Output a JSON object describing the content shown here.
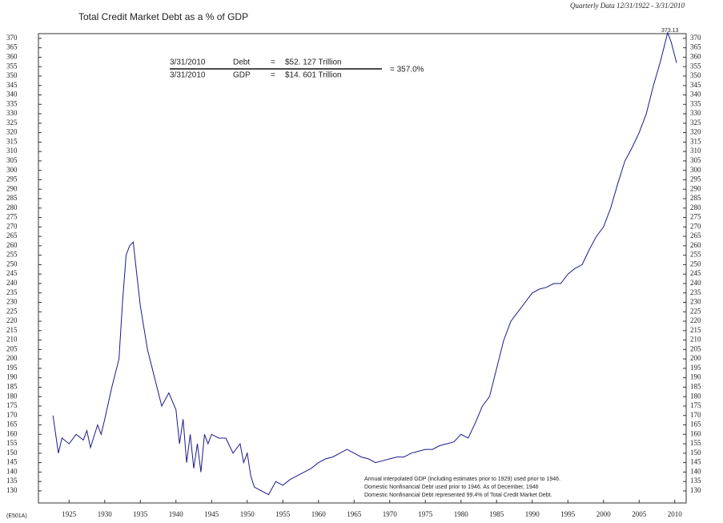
{
  "chart_data": {
    "type": "line",
    "title": "Total Credit Market Debt as a % of GDP",
    "subtitle": "Quarterly Data 12/31/1922 - 3/31/2010",
    "code": "(E501A)",
    "peak_label": "373.13",
    "formula": {
      "debt_date": "3/31/2010",
      "debt_name": "Debt",
      "debt_eq": "=",
      "debt_value": "$52. 127 Trillion",
      "gdp_date": "3/31/2010",
      "gdp_name": "GDP",
      "gdp_eq": "=",
      "gdp_value": "$14. 601 Trillion",
      "result": "= 357.0%"
    },
    "notes": [
      "Annual interpolated GDP (including estimates prior to 1929) used prior to 1946.",
      "Domestic Nonfinancial Debt used prior to 1946. As of December, 1946",
      "Domestic Nonfinancial Debt represented 99.4% of Total Credit Market Debt."
    ],
    "color": "#1a1a8c",
    "xlim": [
      1920.7,
      2011.6
    ],
    "ylim": [
      123.6,
      372.5
    ],
    "xticks": [
      1925,
      1930,
      1935,
      1940,
      1945,
      1950,
      1955,
      1960,
      1965,
      1970,
      1975,
      1980,
      1985,
      1990,
      1995,
      2000,
      2005,
      2010
    ],
    "yticks": [
      130,
      135,
      140,
      145,
      150,
      155,
      160,
      165,
      170,
      175,
      180,
      185,
      190,
      195,
      200,
      205,
      210,
      215,
      220,
      225,
      230,
      235,
      240,
      245,
      250,
      255,
      260,
      265,
      270,
      275,
      280,
      285,
      290,
      295,
      300,
      305,
      310,
      315,
      320,
      325,
      330,
      335,
      340,
      345,
      350,
      355,
      360,
      365,
      370
    ],
    "x": [
      1922.75,
      1923.5,
      1924,
      1925,
      1926,
      1927,
      1927.5,
      1928,
      1929,
      1929.5,
      1930,
      1931,
      1932,
      1932.5,
      1933,
      1933.5,
      1934,
      1934.5,
      1935,
      1936,
      1937,
      1938,
      1939,
      1940,
      1940.5,
      1941,
      1941.5,
      1942,
      1942.5,
      1943,
      1943.5,
      1944,
      1944.5,
      1945,
      1946,
      1947,
      1948,
      1949,
      1949.5,
      1950,
      1950.5,
      1951,
      1952,
      1953,
      1954,
      1955,
      1956,
      1957,
      1958,
      1959,
      1960,
      1961,
      1962,
      1963,
      1964,
      1965,
      1966,
      1967,
      1968,
      1969,
      1970,
      1971,
      1972,
      1973,
      1974,
      1975,
      1976,
      1977,
      1978,
      1979,
      1980,
      1981,
      1982,
      1983,
      1984,
      1985,
      1986,
      1987,
      1988,
      1989,
      1990,
      1991,
      1992,
      1993,
      1994,
      1995,
      1996,
      1997,
      1998,
      1999,
      2000,
      2001,
      2002,
      2003,
      2004,
      2005,
      2006,
      2007,
      2008,
      2009,
      2009.5,
      2010.25
    ],
    "values": [
      170,
      150,
      158,
      155,
      160,
      157,
      162,
      153,
      165,
      160,
      168,
      185,
      200,
      230,
      255,
      260,
      262,
      245,
      228,
      205,
      190,
      175,
      182,
      173,
      155,
      168,
      145,
      160,
      142,
      155,
      140,
      160,
      155,
      160,
      158,
      158,
      150,
      155,
      145,
      150,
      138,
      132,
      130,
      128,
      135,
      133,
      136,
      138,
      140,
      142,
      145,
      147,
      148,
      150,
      152,
      150,
      148,
      147,
      145,
      146,
      147,
      148,
      148,
      150,
      151,
      152,
      152,
      154,
      155,
      156,
      160,
      158,
      166,
      175,
      180,
      195,
      210,
      220,
      225,
      230,
      235,
      237,
      238,
      240,
      240,
      245,
      248,
      250,
      258,
      265,
      270,
      280,
      293,
      305,
      312,
      320,
      330,
      345,
      358,
      373,
      368,
      357
    ]
  }
}
